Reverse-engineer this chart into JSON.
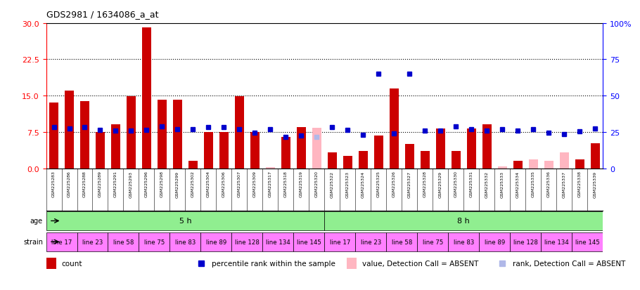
{
  "title": "GDS2981 / 1634086_a_at",
  "samples": [
    "GSM225283",
    "GSM225286",
    "GSM225288",
    "GSM225289",
    "GSM225291",
    "GSM225293",
    "GSM225296",
    "GSM225298",
    "GSM225299",
    "GSM225302",
    "GSM225304",
    "GSM225306",
    "GSM225307",
    "GSM225309",
    "GSM225317",
    "GSM225318",
    "GSM225319",
    "GSM225320",
    "GSM225322",
    "GSM225323",
    "GSM225324",
    "GSM225325",
    "GSM225326",
    "GSM225327",
    "GSM225328",
    "GSM225329",
    "GSM225330",
    "GSM225331",
    "GSM225332",
    "GSM225333",
    "GSM225334",
    "GSM225335",
    "GSM225336",
    "GSM225337",
    "GSM225338",
    "GSM225339"
  ],
  "count": [
    13.5,
    16.0,
    13.8,
    7.5,
    9.0,
    14.8,
    29.0,
    14.2,
    14.2,
    1.5,
    7.5,
    7.5,
    14.8,
    7.5,
    0.2,
    6.5,
    8.5,
    8.3,
    3.2,
    2.5,
    3.5,
    6.8,
    16.5,
    5.0,
    3.5,
    8.2,
    3.5,
    8.2,
    9.0,
    0.3,
    1.5,
    1.8,
    1.5,
    3.2,
    1.8,
    5.2
  ],
  "count_absent": [
    false,
    false,
    false,
    false,
    false,
    false,
    false,
    false,
    false,
    false,
    false,
    false,
    false,
    false,
    true,
    false,
    false,
    true,
    false,
    false,
    false,
    false,
    false,
    false,
    false,
    false,
    false,
    false,
    false,
    true,
    false,
    true,
    true,
    true,
    false,
    false
  ],
  "percentile": [
    28.5,
    27.2,
    28.5,
    26.5,
    25.8,
    25.8,
    26.5,
    29.0,
    27.0,
    26.8,
    28.5,
    28.5,
    26.8,
    24.2,
    26.8,
    21.5,
    22.5,
    21.5,
    28.5,
    26.5,
    22.8,
    65.0,
    23.8,
    65.0,
    25.8,
    25.8,
    29.0,
    27.0,
    25.8,
    27.0,
    25.8,
    27.0,
    24.5,
    23.5,
    25.5,
    27.5
  ],
  "percentile_absent": [
    false,
    false,
    false,
    false,
    false,
    false,
    false,
    false,
    false,
    false,
    false,
    false,
    false,
    false,
    false,
    false,
    false,
    true,
    false,
    false,
    false,
    false,
    false,
    false,
    false,
    false,
    false,
    false,
    false,
    false,
    false,
    false,
    false,
    false,
    false,
    false
  ],
  "ylim_left": [
    0,
    30
  ],
  "ylim_right": [
    0,
    100
  ],
  "yticks_left": [
    0,
    7.5,
    15,
    22.5,
    30
  ],
  "yticks_right": [
    0,
    25,
    50,
    75,
    100
  ],
  "strains": [
    "line 17",
    "line 23",
    "line 58",
    "line 75",
    "line 83",
    "line 89",
    "line 128",
    "line 134",
    "line 145"
  ],
  "bar_color_present": "#CC0000",
  "bar_color_absent": "#FFB6C1",
  "dot_color_present": "#0000CC",
  "dot_color_absent": "#B0B8E8",
  "bg_color": "#FFFFFF",
  "tick_label_area_color": "#D3D3D3",
  "age_color": "#90EE90",
  "strain_color": "#FF80FF"
}
